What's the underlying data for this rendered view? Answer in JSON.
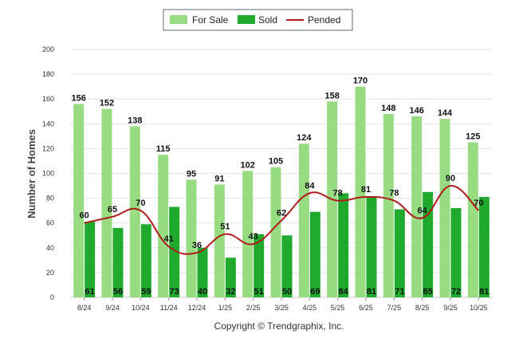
{
  "chart_data": {
    "type": "bar",
    "title": "",
    "xlabel": "",
    "ylabel": "Number of Homes",
    "ylim": [
      0,
      200
    ],
    "yticks": [
      0,
      20,
      40,
      60,
      80,
      100,
      120,
      140,
      160,
      180,
      200
    ],
    "grid": true,
    "legend_position": "top-center",
    "categories": [
      "8/24",
      "9/24",
      "10/24",
      "11/24",
      "12/24",
      "1/25",
      "2/25",
      "3/25",
      "4/25",
      "5/25",
      "6/25",
      "7/25",
      "8/25",
      "9/25",
      "10/25"
    ],
    "series": [
      {
        "name": "For Sale",
        "kind": "bar",
        "color": "#98dc82",
        "values": [
          156,
          152,
          138,
          115,
          95,
          91,
          102,
          105,
          124,
          158,
          170,
          148,
          146,
          144,
          125
        ]
      },
      {
        "name": "Sold",
        "kind": "bar",
        "color": "#1faa2e",
        "values": [
          61,
          56,
          59,
          73,
          40,
          32,
          51,
          50,
          69,
          84,
          81,
          71,
          85,
          72,
          81
        ]
      },
      {
        "name": "Pended",
        "kind": "line",
        "color": "#b01c1c",
        "values": [
          60,
          65,
          70,
          41,
          36,
          51,
          43,
          62,
          84,
          78,
          81,
          78,
          64,
          90,
          70
        ]
      }
    ]
  },
  "footer": {
    "copyright": "Copyright © Trendgraphix, Inc."
  }
}
